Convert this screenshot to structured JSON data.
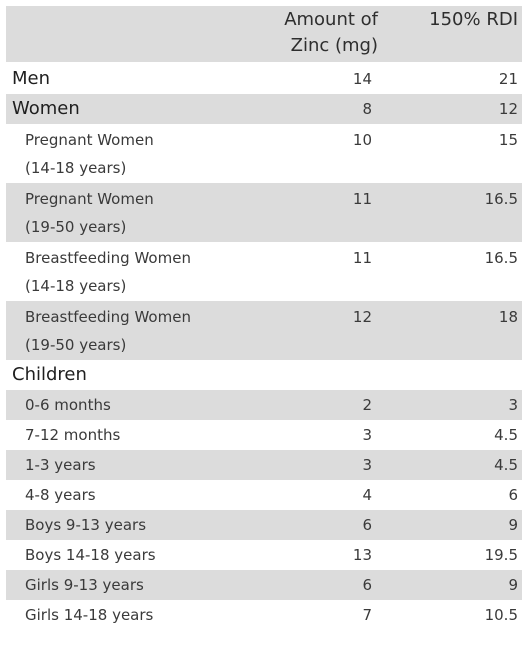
{
  "header": {
    "col1": "Amount of\nZinc (mg)",
    "col1_line1": "Amount of",
    "col1_line2": "Zinc (mg)",
    "col2": "150% RDI"
  },
  "groups": {
    "men": {
      "label": "Men",
      "amount": "14",
      "rdi": "21"
    },
    "women": {
      "label": "Women",
      "amount": "8",
      "rdi": "12"
    },
    "children": {
      "label": "Children"
    }
  },
  "women_rows": [
    {
      "line1": "Pregnant Women",
      "line2": "(14-18 years)",
      "amount": "10",
      "rdi": "15"
    },
    {
      "line1": "Pregnant Women",
      "line2": "(19-50 years)",
      "amount": "11",
      "rdi": "16.5"
    },
    {
      "line1": "Breastfeeding Women",
      "line2": "(14-18 years)",
      "amount": "11",
      "rdi": "16.5"
    },
    {
      "line1": "Breastfeeding Women",
      "line2": "(19-50 years)",
      "amount": "12",
      "rdi": "18"
    }
  ],
  "children_rows": [
    {
      "label": "0-6 months",
      "amount": "2",
      "rdi": "3"
    },
    {
      "label": "7-12 months",
      "amount": "3",
      "rdi": "4.5"
    },
    {
      "label": "1-3 years",
      "amount": "3",
      "rdi": "4.5"
    },
    {
      "label": "4-8 years",
      "amount": "4",
      "rdi": "6"
    },
    {
      "label": "Boys 9-13 years",
      "amount": "6",
      "rdi": "9"
    },
    {
      "label": "Boys 14-18 years",
      "amount": "13",
      "rdi": "19.5"
    },
    {
      "label": "Girls 9-13 years",
      "amount": "6",
      "rdi": "9"
    },
    {
      "label": "Girls 14-18 years",
      "amount": "7",
      "rdi": "10.5"
    }
  ]
}
